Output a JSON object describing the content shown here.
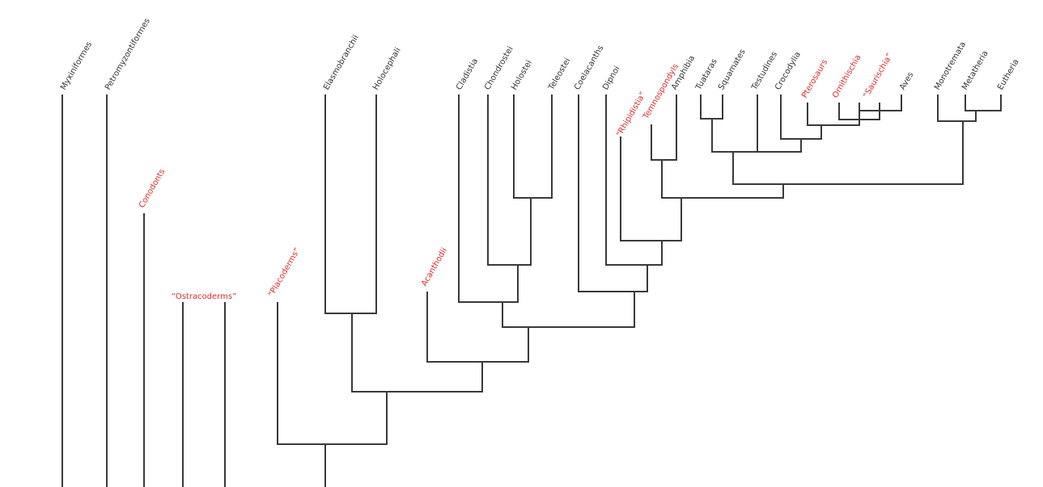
{
  "colors": {
    "line": "#3a3a3a",
    "extant_label": "#333333",
    "extinct_label": "#e02b2b"
  },
  "taxa": {
    "myxiniformes": {
      "label": "Myxiniformes",
      "extinct": false
    },
    "petromyzontiformes": {
      "label": "Petromyzontiformes",
      "extinct": false
    },
    "conodonts": {
      "label": "Conodonts",
      "extinct": true
    },
    "ostracoderms": {
      "label": "“Ostracoderms”",
      "extinct": true
    },
    "placoderms": {
      "label": "“Placoderms”",
      "extinct": true
    },
    "elasmobranchii": {
      "label": "Elasmobranchii",
      "extinct": false
    },
    "holocephali": {
      "label": "Holocephali",
      "extinct": false
    },
    "acanthodii": {
      "label": "Acanthodii",
      "extinct": true
    },
    "cladistia": {
      "label": "Cladistia",
      "extinct": false
    },
    "chondrostei": {
      "label": "Chondrostei",
      "extinct": false
    },
    "holostei": {
      "label": "Holostei",
      "extinct": false
    },
    "teleostei": {
      "label": "Teleostei",
      "extinct": false
    },
    "coelacanths": {
      "label": "Coelacanths",
      "extinct": false
    },
    "dipnoi": {
      "label": "Dipnoi",
      "extinct": false
    },
    "rhipidistia": {
      "label": "“Rhipidistia”",
      "extinct": true
    },
    "temnospondyls": {
      "label": "Temnospondyls",
      "extinct": true
    },
    "amphibia": {
      "label": "Amphibia",
      "extinct": false
    },
    "tuataras": {
      "label": "Tuataras",
      "extinct": false
    },
    "squamates": {
      "label": "Squamates",
      "extinct": false
    },
    "testudines": {
      "label": "Testudines",
      "extinct": false
    },
    "crocodylia": {
      "label": "Crocodylia",
      "extinct": false
    },
    "pterosaurs": {
      "label": "Pterosaurs",
      "extinct": true
    },
    "ornithischia": {
      "label": "Ornithischia",
      "extinct": true
    },
    "saurischia": {
      "label": "“Saurischia”",
      "extinct": true
    },
    "aves": {
      "label": "Aves",
      "extinct": false
    },
    "monotremata": {
      "label": "Monotremata",
      "extinct": false
    },
    "metatheria": {
      "label": "Metatheria",
      "extinct": false
    },
    "eutheria": {
      "label": "Eutheria",
      "extinct": false
    }
  }
}
